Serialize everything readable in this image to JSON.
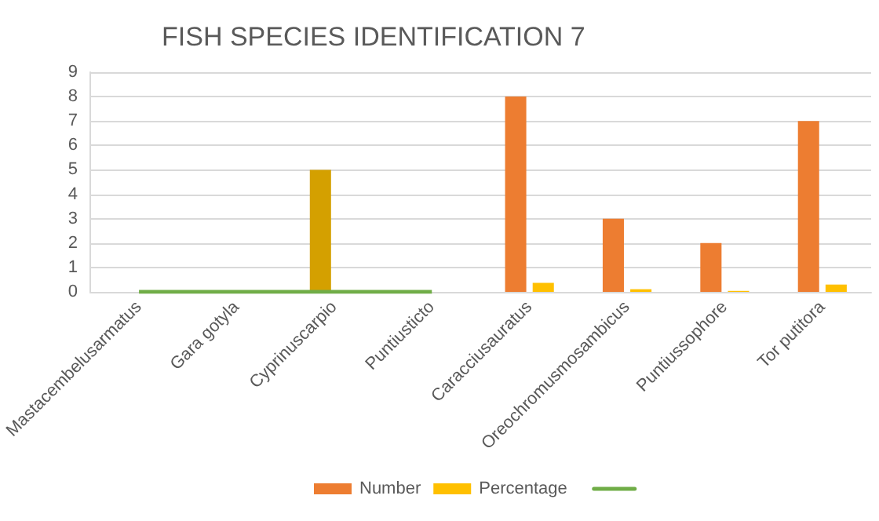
{
  "chart_data": {
    "type": "bar",
    "title": "FISH SPECIES IDENTIFICATION 7",
    "categories": [
      "Mastacembelusarmatus",
      "Gara gotyla",
      "Cyprinuscarpio",
      "Puntiusticto",
      "Caracciusauratus",
      "Oreochromusmosambicus",
      "Puntiussophore",
      "Tor putitora"
    ],
    "series": [
      {
        "name": "Number",
        "color": "#ed7d31",
        "colors": [
          "#ed7d31",
          "#ed7d31",
          "#d4a000",
          "#ed7d31",
          "#ed7d31",
          "#ed7d31",
          "#ed7d31",
          "#ed7d31"
        ],
        "values": [
          0,
          0,
          5,
          0,
          8,
          3,
          2,
          7
        ]
      },
      {
        "name": "Percentage",
        "color": "#ffc000",
        "values": [
          null,
          null,
          null,
          null,
          0.37,
          0.11,
          0.04,
          0.3
        ]
      },
      {
        "type": "line",
        "color": "#70ad47",
        "values": [
          0,
          0,
          0,
          0,
          null,
          null,
          null,
          null
        ]
      }
    ],
    "ylim": [
      0,
      9
    ],
    "yticks": [
      0,
      1,
      2,
      3,
      4,
      5,
      6,
      7,
      8,
      9
    ],
    "grid": "y",
    "legend": "bottom",
    "marker": "none"
  }
}
